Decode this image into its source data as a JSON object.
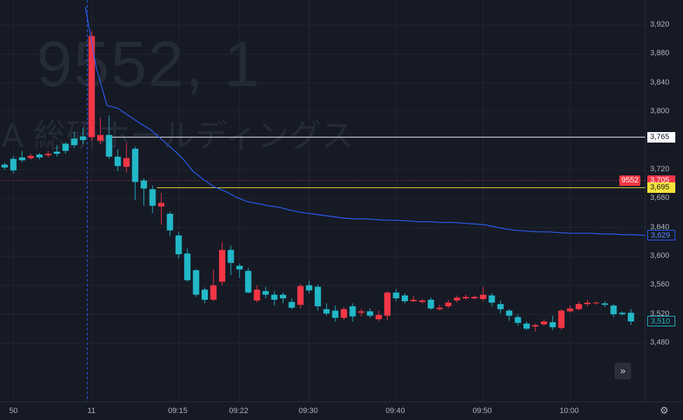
{
  "watermark": {
    "code": "9552, 1",
    "name": "A 総研ホールディングス"
  },
  "chart_data": {
    "type": "candlestick",
    "symbol": "9552",
    "interval": "1",
    "ylim": [
      3455,
      3960
    ],
    "y_ticks": [
      3920,
      3880,
      3840,
      3800,
      3720,
      3680,
      3640,
      3600,
      3560,
      3520,
      3480
    ],
    "y_tick_labels": [
      "3,920",
      "3,880",
      "3,840",
      "3,800",
      "3,720",
      "3,680",
      "3,640",
      "3,600",
      "3,560",
      "3,520",
      "3,480"
    ],
    "x_tick_labels": [
      {
        "label": "50",
        "bar": -9
      },
      {
        "label": "11",
        "bar": 0
      },
      {
        "label": "09:15",
        "bar": 10
      },
      {
        "label": "09:22",
        "bar": 17
      },
      {
        "label": "09:30",
        "bar": 25
      },
      {
        "label": "09:40",
        "bar": 35
      },
      {
        "label": "09:50",
        "bar": 45
      },
      {
        "label": "10:00",
        "bar": 55
      }
    ],
    "candles": [
      [
        3732,
        3724,
        3737,
        3721
      ],
      [
        3727,
        3723,
        3730,
        3720
      ],
      [
        3735,
        3719,
        3739,
        3715
      ],
      [
        3737,
        3733,
        3746,
        3730
      ],
      [
        3736,
        3739,
        3742,
        3734
      ],
      [
        3741,
        3737,
        3743,
        3734
      ],
      [
        3740,
        3742,
        3746,
        3737
      ],
      [
        3745,
        3742,
        3754,
        3738
      ],
      [
        3756,
        3746,
        3758,
        3742
      ],
      [
        3763,
        3754,
        3772,
        3750
      ],
      [
        3766,
        3761,
        3778,
        3755
      ],
      [
        3765,
        3905,
        3912,
        3760
      ],
      [
        3760,
        3768,
        3792,
        3755
      ],
      [
        3768,
        3738,
        3795,
        3735
      ],
      [
        3738,
        3725,
        3748,
        3718
      ],
      [
        3724,
        3736,
        3757,
        3716
      ],
      [
        3749,
        3703,
        3752,
        3678
      ],
      [
        3705,
        3694,
        3708,
        3670
      ],
      [
        3693,
        3670,
        3698,
        3660
      ],
      [
        3669,
        3674,
        3688,
        3644
      ],
      [
        3659,
        3636,
        3662,
        3628
      ],
      [
        3629,
        3603,
        3634,
        3597
      ],
      [
        3604,
        3567,
        3611,
        3565
      ],
      [
        3581,
        3547,
        3582,
        3544
      ],
      [
        3554,
        3540,
        3557,
        3535
      ],
      [
        3540,
        3560,
        3582,
        3538
      ],
      [
        3565,
        3609,
        3620,
        3560
      ],
      [
        3609,
        3591,
        3615,
        3574
      ],
      [
        3587,
        3582,
        3590,
        3570
      ],
      [
        3580,
        3550,
        3584,
        3549
      ],
      [
        3539,
        3554,
        3560,
        3536
      ],
      [
        3552,
        3547,
        3558,
        3542
      ],
      [
        3547,
        3540,
        3552,
        3532
      ],
      [
        3547,
        3542,
        3550,
        3535
      ],
      [
        3537,
        3529,
        3542,
        3527
      ],
      [
        3533,
        3559,
        3562,
        3528
      ],
      [
        3560,
        3553,
        3566,
        3549
      ],
      [
        3558,
        3531,
        3561,
        3525
      ],
      [
        3527,
        3521,
        3535,
        3518
      ],
      [
        3525,
        3515,
        3532,
        3510
      ],
      [
        3515,
        3527,
        3530,
        3512
      ],
      [
        3531,
        3517,
        3535,
        3510
      ],
      [
        3522,
        3524,
        3528,
        3517
      ],
      [
        3524,
        3518,
        3528,
        3515
      ],
      [
        3513,
        3519,
        3525,
        3510
      ],
      [
        3518,
        3550,
        3552,
        3512
      ],
      [
        3550,
        3542,
        3555,
        3538
      ],
      [
        3546,
        3538,
        3549,
        3535
      ],
      [
        3538,
        3540,
        3546,
        3537
      ],
      [
        3537,
        3539,
        3541,
        3535
      ],
      [
        3540,
        3528,
        3543,
        3526
      ],
      [
        3527,
        3529,
        3533,
        3525
      ],
      [
        3531,
        3536,
        3540,
        3528
      ],
      [
        3539,
        3543,
        3546,
        3536
      ],
      [
        3542,
        3544,
        3547,
        3540
      ],
      [
        3542,
        3544,
        3546,
        3540
      ],
      [
        3541,
        3547,
        3558,
        3538
      ],
      [
        3546,
        3536,
        3549,
        3531
      ],
      [
        3534,
        3527,
        3539,
        3521
      ],
      [
        3525,
        3518,
        3527,
        3511
      ],
      [
        3516,
        3508,
        3520,
        3504
      ],
      [
        3507,
        3500,
        3510,
        3498
      ],
      [
        3503,
        3505,
        3507,
        3496
      ],
      [
        3506,
        3510,
        3513,
        3504
      ],
      [
        3509,
        3502,
        3518,
        3498
      ],
      [
        3501,
        3525,
        3527,
        3498
      ],
      [
        3524,
        3528,
        3532,
        3522
      ],
      [
        3527,
        3534,
        3538,
        3525
      ],
      [
        3534,
        3536,
        3540,
        3531
      ],
      [
        3536,
        3536,
        3538,
        3533
      ],
      [
        3535,
        3533,
        3538,
        3530
      ],
      [
        3532,
        3520,
        3534,
        3516
      ],
      [
        3522,
        3520,
        3524,
        3518
      ],
      [
        3522,
        3510,
        3527,
        3505
      ]
    ],
    "vwap": {
      "name": "VWAP",
      "values": [
        3945,
        3862,
        3809,
        3805,
        3795,
        3785,
        3776,
        3763,
        3750,
        3736,
        3718,
        3706,
        3696,
        3690,
        3682,
        3676,
        3673,
        3670,
        3668,
        3664,
        3661,
        3659,
        3657,
        3655,
        3653,
        3652,
        3652,
        3651,
        3650,
        3650,
        3649,
        3648,
        3648,
        3647,
        3647,
        3646,
        3645,
        3644,
        3641,
        3638,
        3636,
        3635,
        3634,
        3634,
        3633,
        3632,
        3632,
        3632,
        3631,
        3631,
        3630,
        3630,
        3629
      ]
    },
    "price_lines": [
      {
        "value": 3765,
        "label": "3,765",
        "color": "#ffffff"
      },
      {
        "value": 3695,
        "label": "3,695",
        "color": "#f5e33b"
      }
    ],
    "last_price": {
      "value": 3705,
      "label": "3,705",
      "symbol_label": "9552",
      "color": "#f23645"
    },
    "vwap_last": {
      "value": 3629,
      "label": "3,629",
      "color": "#2962ff"
    },
    "close_last": {
      "value": 3510,
      "label": "3,510",
      "color": "#22b8c8"
    },
    "colors": {
      "up": "#f23645",
      "down": "#22b8c8",
      "background": "#161a25",
      "grid": "#222632",
      "text": "#b2b5be"
    }
  },
  "icons": {
    "scroll_right": "double-chevron-right-icon",
    "settings": "gear-icon"
  }
}
